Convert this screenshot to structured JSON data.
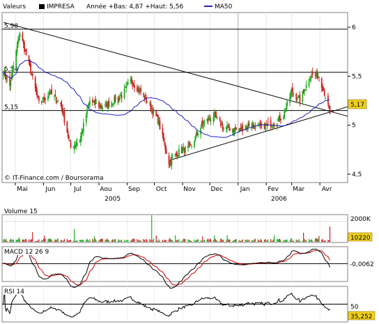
{
  "header": {
    "label_valeurs": "Valeurs",
    "ticker": "IMPRESA",
    "stats": "Année +Bas: 4,87 +Haut: 5,56",
    "ma_label": "MA50"
  },
  "credit": "© IT-Finance.com / Boursorama",
  "chart_data": [
    {
      "type": "line",
      "panel": "price",
      "series": [
        {
          "name": "IMPRESA",
          "style": "candlestick"
        },
        {
          "name": "MA50",
          "style": "line",
          "color": "#1f1fbf"
        }
      ],
      "control_points": [
        [
          "2005-04-18",
          5.55
        ],
        [
          "2005-04-25",
          5.4
        ],
        [
          "2005-05-06",
          5.95
        ],
        [
          "2005-05-16",
          5.62
        ],
        [
          "2005-05-27",
          5.22
        ],
        [
          "2005-06-08",
          5.33
        ],
        [
          "2005-06-20",
          5.22
        ],
        [
          "2005-07-01",
          4.77
        ],
        [
          "2005-07-11",
          4.85
        ],
        [
          "2005-07-22",
          5.25
        ],
        [
          "2005-08-05",
          5.18
        ],
        [
          "2005-08-17",
          5.25
        ],
        [
          "2005-08-26",
          5.3
        ],
        [
          "2005-09-05",
          5.45
        ],
        [
          "2005-09-15",
          5.35
        ],
        [
          "2005-09-26",
          5.2
        ],
        [
          "2005-10-05",
          5.05
        ],
        [
          "2005-10-17",
          4.62
        ],
        [
          "2005-10-28",
          4.73
        ],
        [
          "2005-11-10",
          4.78
        ],
        [
          "2005-11-22",
          5.0
        ],
        [
          "2005-12-05",
          5.1
        ],
        [
          "2005-12-16",
          4.98
        ],
        [
          "2006-01-02",
          4.95
        ],
        [
          "2006-01-13",
          5.0
        ],
        [
          "2006-01-25",
          4.98
        ],
        [
          "2006-02-08",
          5.02
        ],
        [
          "2006-02-20",
          5.1
        ],
        [
          "2006-03-01",
          5.35
        ],
        [
          "2006-03-10",
          5.25
        ],
        [
          "2006-03-22",
          5.52
        ],
        [
          "2006-03-31",
          5.5
        ],
        [
          "2006-04-07",
          5.3
        ],
        [
          "2006-04-12",
          5.12
        ]
      ],
      "ylim": [
        4.5,
        6.15
      ],
      "y_ticks": [
        "6",
        "5,5",
        "5",
        "4,5"
      ],
      "y_tick_values": [
        6,
        5.5,
        5,
        4.5
      ],
      "level_labels": [
        "5,98",
        "5,54",
        "5,15"
      ],
      "level_values": [
        5.98,
        5.54,
        5.15
      ],
      "last_value_label": "5,17",
      "last_value": 5.17,
      "trendlines": [
        {
          "from": [
            "2005-04-18",
            6.05
          ],
          "to": [
            "2006-04-14",
            5.12
          ]
        },
        {
          "from": [
            "2005-10-17",
            4.64
          ],
          "to": [
            "2006-04-14",
            5.16
          ]
        }
      ],
      "x_tick_labels": [
        "Mai",
        "Jun",
        "Jul",
        "Aou",
        "Sep",
        "Oct",
        "Nov",
        "Dec",
        "Jan",
        "Fev",
        "Mar",
        "Avr"
      ],
      "x_tick_dates": [
        "2005-05-01",
        "2005-06-01",
        "2005-07-01",
        "2005-08-01",
        "2005-09-01",
        "2005-10-01",
        "2005-11-01",
        "2005-12-01",
        "2006-01-01",
        "2006-02-01",
        "2006-03-01",
        "2006-04-01"
      ],
      "year_labels": [
        "2005",
        "2006"
      ],
      "year_dates": [
        "2005-08-16",
        "2006-02-15"
      ],
      "x_range": [
        "2005-04-18",
        "2006-04-30"
      ],
      "grid": true
    },
    {
      "type": "bar",
      "panel": "volume",
      "title": "Volume 15",
      "y_tick": "2000K",
      "y_tick_value": 2000,
      "last_value_label": "10220",
      "last_value": 10.22,
      "ylim": [
        0,
        2600
      ],
      "spikes": [
        [
          "2005-09-28",
          2650
        ],
        [
          "2006-04-12",
          1500
        ],
        [
          "2005-07-05",
          1250
        ],
        [
          "2005-05-20",
          950
        ],
        [
          "2006-03-14",
          900
        ]
      ]
    },
    {
      "type": "line",
      "panel": "macd",
      "title": "MACD 12 26 9",
      "series": [
        {
          "name": "MACD",
          "color": "#000000"
        },
        {
          "name": "Signal",
          "color": "#cc0000"
        }
      ],
      "last_value_label": "-0,0062",
      "last_value": -0.0062,
      "ylim": [
        -0.11,
        0.1
      ]
    },
    {
      "type": "line",
      "panel": "rsi",
      "title": "RSI 14",
      "y_tick": "50",
      "y_tick_value": 50,
      "last_value_label": "35,252",
      "last_value": 35.252,
      "ylim": [
        0,
        100
      ]
    }
  ]
}
